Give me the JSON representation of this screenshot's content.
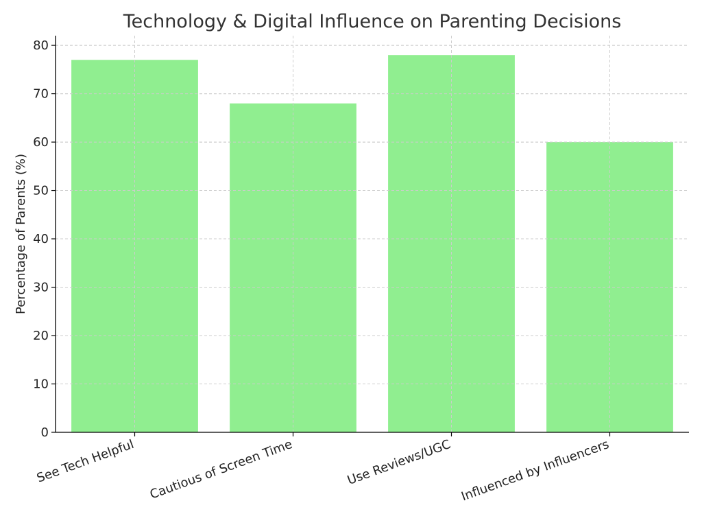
{
  "chart_data": {
    "type": "bar",
    "title": "Technology & Digital Influence on Parenting Decisions",
    "xlabel": "",
    "ylabel": "Percentage of Parents (%)",
    "categories": [
      "See Tech Helpful",
      "Cautious of Screen Time",
      "Use Reviews/UGC",
      "Influenced by Influencers"
    ],
    "values": [
      77,
      68,
      78,
      60
    ],
    "ylim": [
      0,
      82
    ],
    "yticks": [
      0,
      10,
      20,
      30,
      40,
      50,
      60,
      70,
      80
    ],
    "grid": true,
    "bar_color": "#90ee90"
  }
}
